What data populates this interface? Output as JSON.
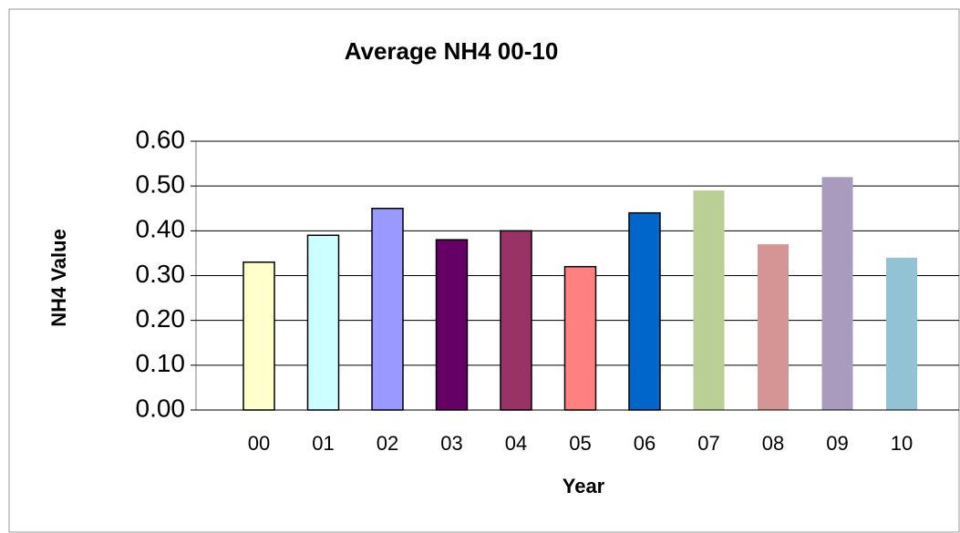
{
  "chart_data": {
    "type": "bar",
    "title": "Average NH4 00-10",
    "xlabel": "Year",
    "ylabel": "NH4 Value",
    "categories": [
      "00",
      "01",
      "02",
      "03",
      "04",
      "05",
      "06",
      "07",
      "08",
      "09",
      "10"
    ],
    "values": [
      0.33,
      0.39,
      0.45,
      0.38,
      0.4,
      0.32,
      0.44,
      0.49,
      0.37,
      0.52,
      0.34
    ],
    "colors": [
      "#ffffcc",
      "#ccffff",
      "#9999ff",
      "#660066",
      "#993366",
      "#ff8080",
      "#0066cc",
      "#b9cf96",
      "#d69595",
      "#a99bbd",
      "#92c3d4"
    ],
    "edge_colors": [
      "#000000",
      "#000000",
      "#000000",
      "#000000",
      "#000000",
      "#000000",
      "#000000",
      null,
      null,
      null,
      null
    ],
    "ylim": [
      0,
      0.6
    ],
    "yticks": [
      {
        "value": 0,
        "label": "0.00"
      },
      {
        "value": 0.1,
        "label": "0.10"
      },
      {
        "value": 0.2,
        "label": "0.20"
      },
      {
        "value": 0.3,
        "label": "0.30"
      },
      {
        "value": 0.4,
        "label": "0.40"
      },
      {
        "value": 0.5,
        "label": "0.50"
      },
      {
        "value": 0.6,
        "label": "0.60"
      }
    ],
    "grid": true
  }
}
